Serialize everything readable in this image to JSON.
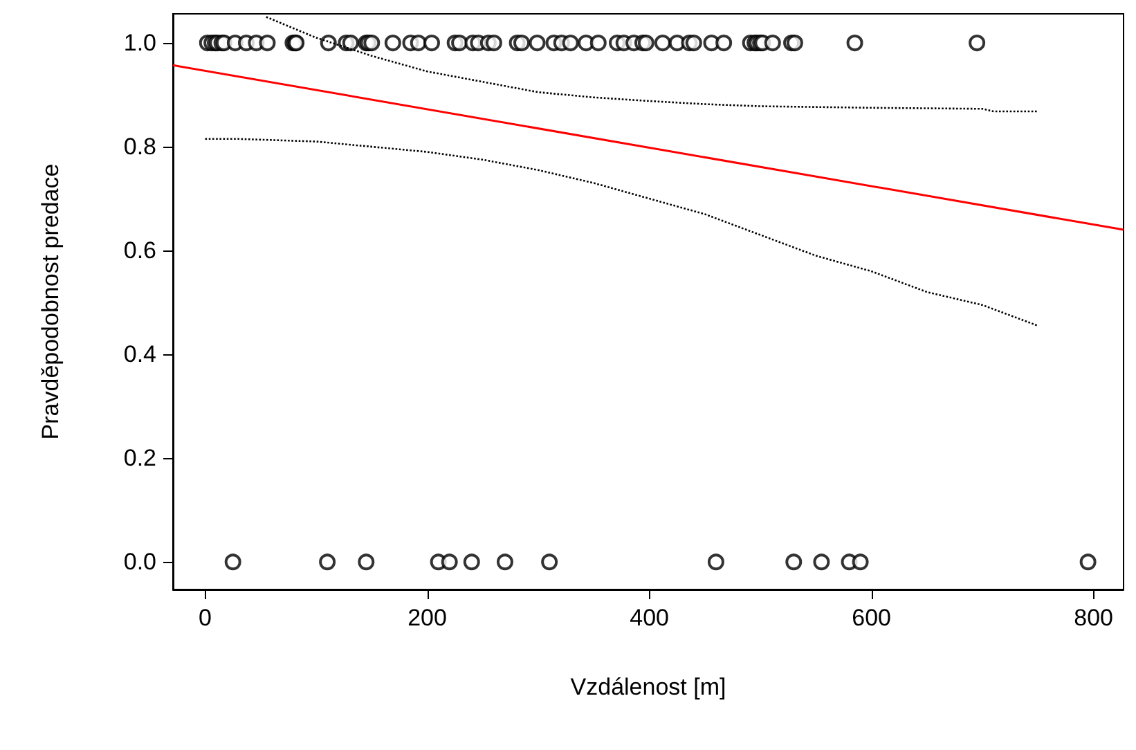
{
  "chart_data": {
    "type": "scatter",
    "xlabel": "Vzdálenost [m]",
    "ylabel": "Pravděpodobnost predace",
    "xlim": [
      -29,
      827
    ],
    "ylim": [
      -0.053,
      1.056
    ],
    "xticks": [
      0,
      200,
      400,
      600,
      800
    ],
    "yticks": [
      {
        "value": 0,
        "label": "0.0"
      },
      {
        "value": 0.2,
        "label": "0.2"
      },
      {
        "value": 0.4,
        "label": "0.4"
      },
      {
        "value": 0.6,
        "label": "0.6"
      },
      {
        "value": 0.8,
        "label": "0.8"
      },
      {
        "value": 1,
        "label": "1.0"
      }
    ],
    "grid": false,
    "series": [
      {
        "color": "#000000",
        "marker": "circle",
        "x": [
          2,
          6,
          9,
          11,
          15,
          17,
          27,
          37,
          46,
          56,
          79,
          81,
          82,
          111,
          127,
          131,
          145,
          147,
          150,
          169,
          185,
          192,
          204,
          225,
          229,
          241,
          246,
          255,
          260,
          281,
          285,
          299,
          314,
          321,
          329,
          343,
          354,
          371,
          377,
          386,
          394,
          397,
          412,
          425,
          436,
          440,
          456,
          467,
          491,
          495,
          497,
          500,
          502,
          511,
          528,
          531,
          585,
          695,
          25,
          110,
          145,
          210,
          220,
          240,
          270,
          310,
          460,
          530,
          555,
          580,
          590,
          795
        ],
        "values": [
          1,
          1,
          1,
          1,
          1,
          1,
          1,
          1,
          1,
          1,
          1,
          1,
          1,
          1,
          1,
          1,
          1,
          1,
          1,
          1,
          1,
          1,
          1,
          1,
          1,
          1,
          1,
          1,
          1,
          1,
          1,
          1,
          1,
          1,
          1,
          1,
          1,
          1,
          1,
          1,
          1,
          1,
          1,
          1,
          1,
          1,
          1,
          1,
          1,
          1,
          1,
          1,
          1,
          1,
          1,
          1,
          1,
          1,
          0,
          0,
          0,
          0,
          0,
          0,
          0,
          0,
          0,
          0,
          0,
          0,
          0,
          0
        ]
      },
      {
        "type": "line",
        "color": "#ff0000",
        "line_style": "solid",
        "x": [
          -29,
          827
        ],
        "values": [
          0.957,
          0.64
        ]
      },
      {
        "type": "line",
        "color": "#000000",
        "line_style": "dotted",
        "x": [
          55,
          100,
          150,
          200,
          250,
          300,
          350,
          400,
          450,
          500,
          600,
          700,
          710,
          750
        ],
        "values": [
          1.05,
          1.01,
          0.975,
          0.945,
          0.925,
          0.905,
          0.895,
          0.888,
          0.882,
          0.878,
          0.875,
          0.873,
          0.868,
          0.868
        ]
      },
      {
        "type": "line",
        "color": "#000000",
        "line_style": "dotted",
        "x": [
          0,
          30,
          100,
          200,
          250,
          300,
          350,
          400,
          450,
          500,
          550,
          600,
          650,
          700,
          750
        ],
        "values": [
          0.815,
          0.815,
          0.81,
          0.79,
          0.775,
          0.755,
          0.73,
          0.7,
          0.67,
          0.63,
          0.59,
          0.56,
          0.52,
          0.495,
          0.455
        ]
      }
    ]
  }
}
